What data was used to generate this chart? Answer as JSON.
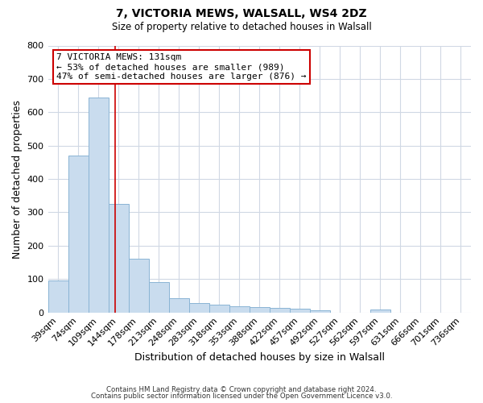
{
  "title": "7, VICTORIA MEWS, WALSALL, WS4 2DZ",
  "subtitle": "Size of property relative to detached houses in Walsall",
  "xlabel": "Distribution of detached houses by size in Walsall",
  "ylabel": "Number of detached properties",
  "bar_labels": [
    "39sqm",
    "74sqm",
    "109sqm",
    "144sqm",
    "178sqm",
    "213sqm",
    "248sqm",
    "283sqm",
    "318sqm",
    "353sqm",
    "388sqm",
    "422sqm",
    "457sqm",
    "492sqm",
    "527sqm",
    "562sqm",
    "597sqm",
    "631sqm",
    "666sqm",
    "701sqm",
    "736sqm"
  ],
  "bar_values": [
    95,
    470,
    645,
    325,
    160,
    92,
    42,
    28,
    22,
    18,
    15,
    14,
    10,
    6,
    0,
    0,
    8,
    0,
    0,
    0,
    0
  ],
  "bar_color": "#c9dcee",
  "bar_edge_color": "#8ab4d4",
  "vline_x_index": 2.82,
  "vline_color": "#cc0000",
  "annotation_text": "7 VICTORIA MEWS: 131sqm\n← 53% of detached houses are smaller (989)\n47% of semi-detached houses are larger (876) →",
  "annotation_box_color": "#ffffff",
  "annotation_box_edge_color": "#cc0000",
  "ylim": [
    0,
    800
  ],
  "yticks": [
    0,
    100,
    200,
    300,
    400,
    500,
    600,
    700,
    800
  ],
  "background_color": "#ffffff",
  "grid_color": "#d0d8e4",
  "footer_line1": "Contains HM Land Registry data © Crown copyright and database right 2024.",
  "footer_line2": "Contains public sector information licensed under the Open Government Licence v3.0."
}
